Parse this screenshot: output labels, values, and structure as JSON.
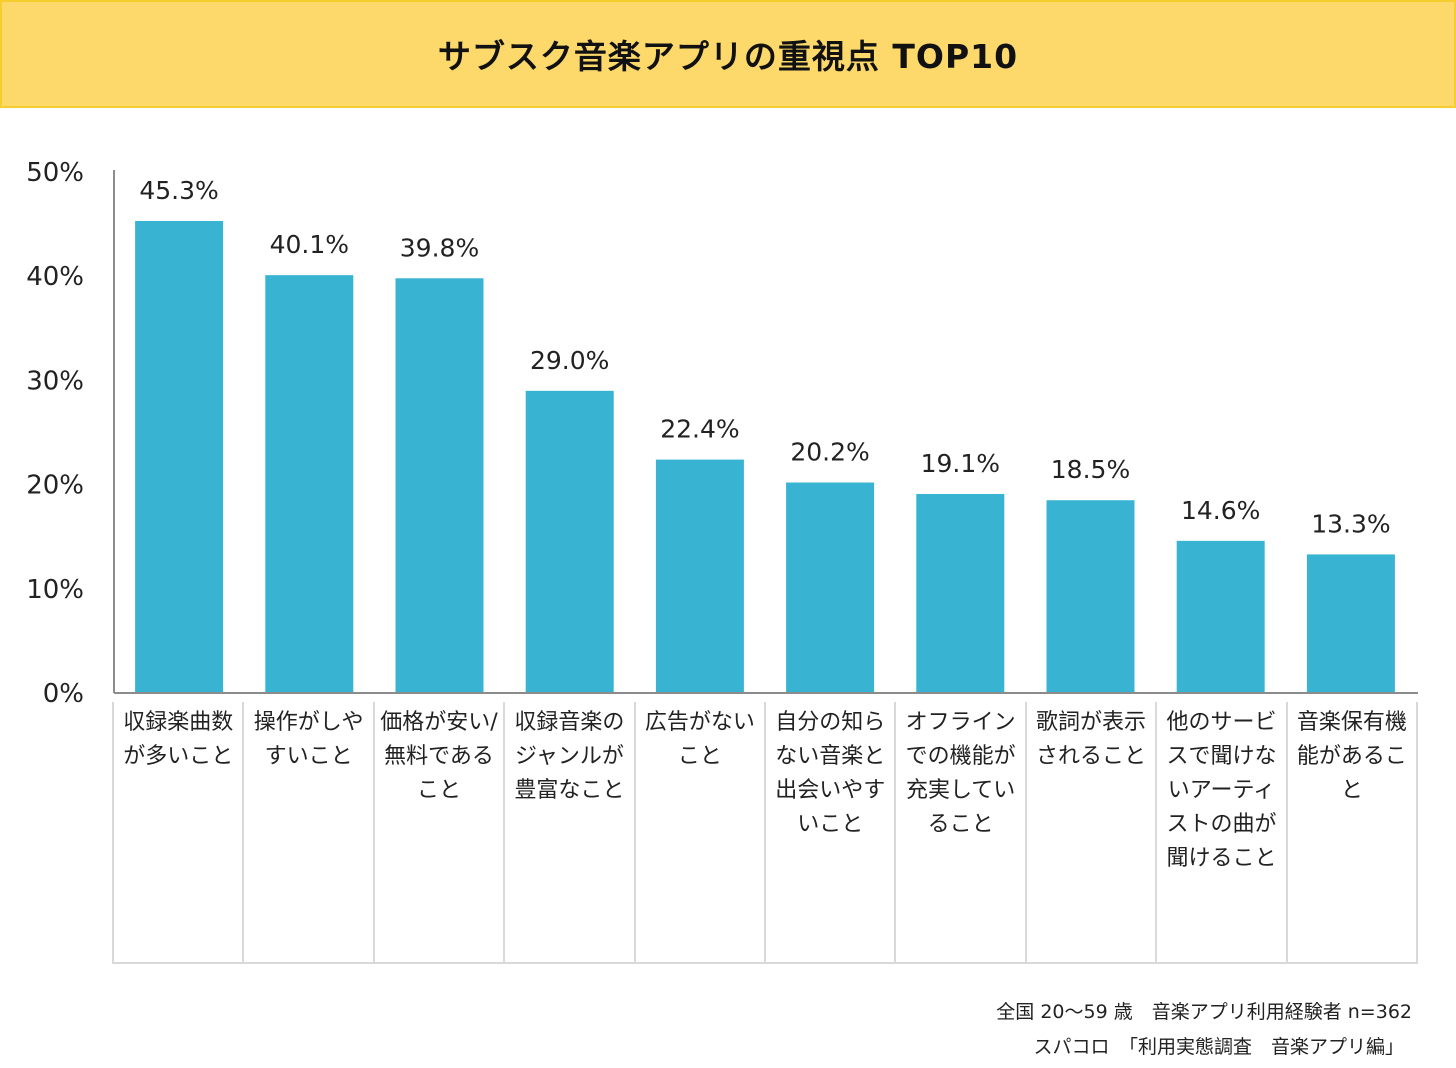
{
  "title": "サブスク音楽アプリの重視点 TOP10",
  "chart_data": {
    "type": "bar",
    "categories": [
      "収録楽曲数が多いこと",
      "操作がしやすいこと",
      "価格が安い/無料であること",
      "収録音楽のジャンルが豊富なこと",
      "広告がないこと",
      "自分の知らない音楽と出会いやすいこと",
      "オフラインでの機能が充実していること",
      "歌詞が表示されること",
      "他のサービスで聞けないアーティストの曲が聞けること",
      "音楽保有機能があること"
    ],
    "values": [
      45.3,
      40.1,
      39.8,
      29.0,
      22.4,
      20.2,
      19.1,
      18.5,
      14.6,
      13.3
    ],
    "value_labels": [
      "45.3%",
      "40.1%",
      "39.8%",
      "29.0%",
      "22.4%",
      "20.2%",
      "19.1%",
      "18.5%",
      "14.6%",
      "13.3%"
    ],
    "ylim": [
      0,
      50
    ],
    "yticks": [
      0,
      10,
      20,
      30,
      40,
      50
    ],
    "ytick_labels": [
      "0%",
      "10%",
      "20%",
      "30%",
      "40%",
      "50%"
    ],
    "bar_color": "#38b3d2",
    "grid": false
  },
  "source": {
    "line1": "全国 20～59 歳　音楽アプリ利用経験者 n=362",
    "line2": "スパコロ　「利用実態調査　音楽アプリ編」"
  }
}
